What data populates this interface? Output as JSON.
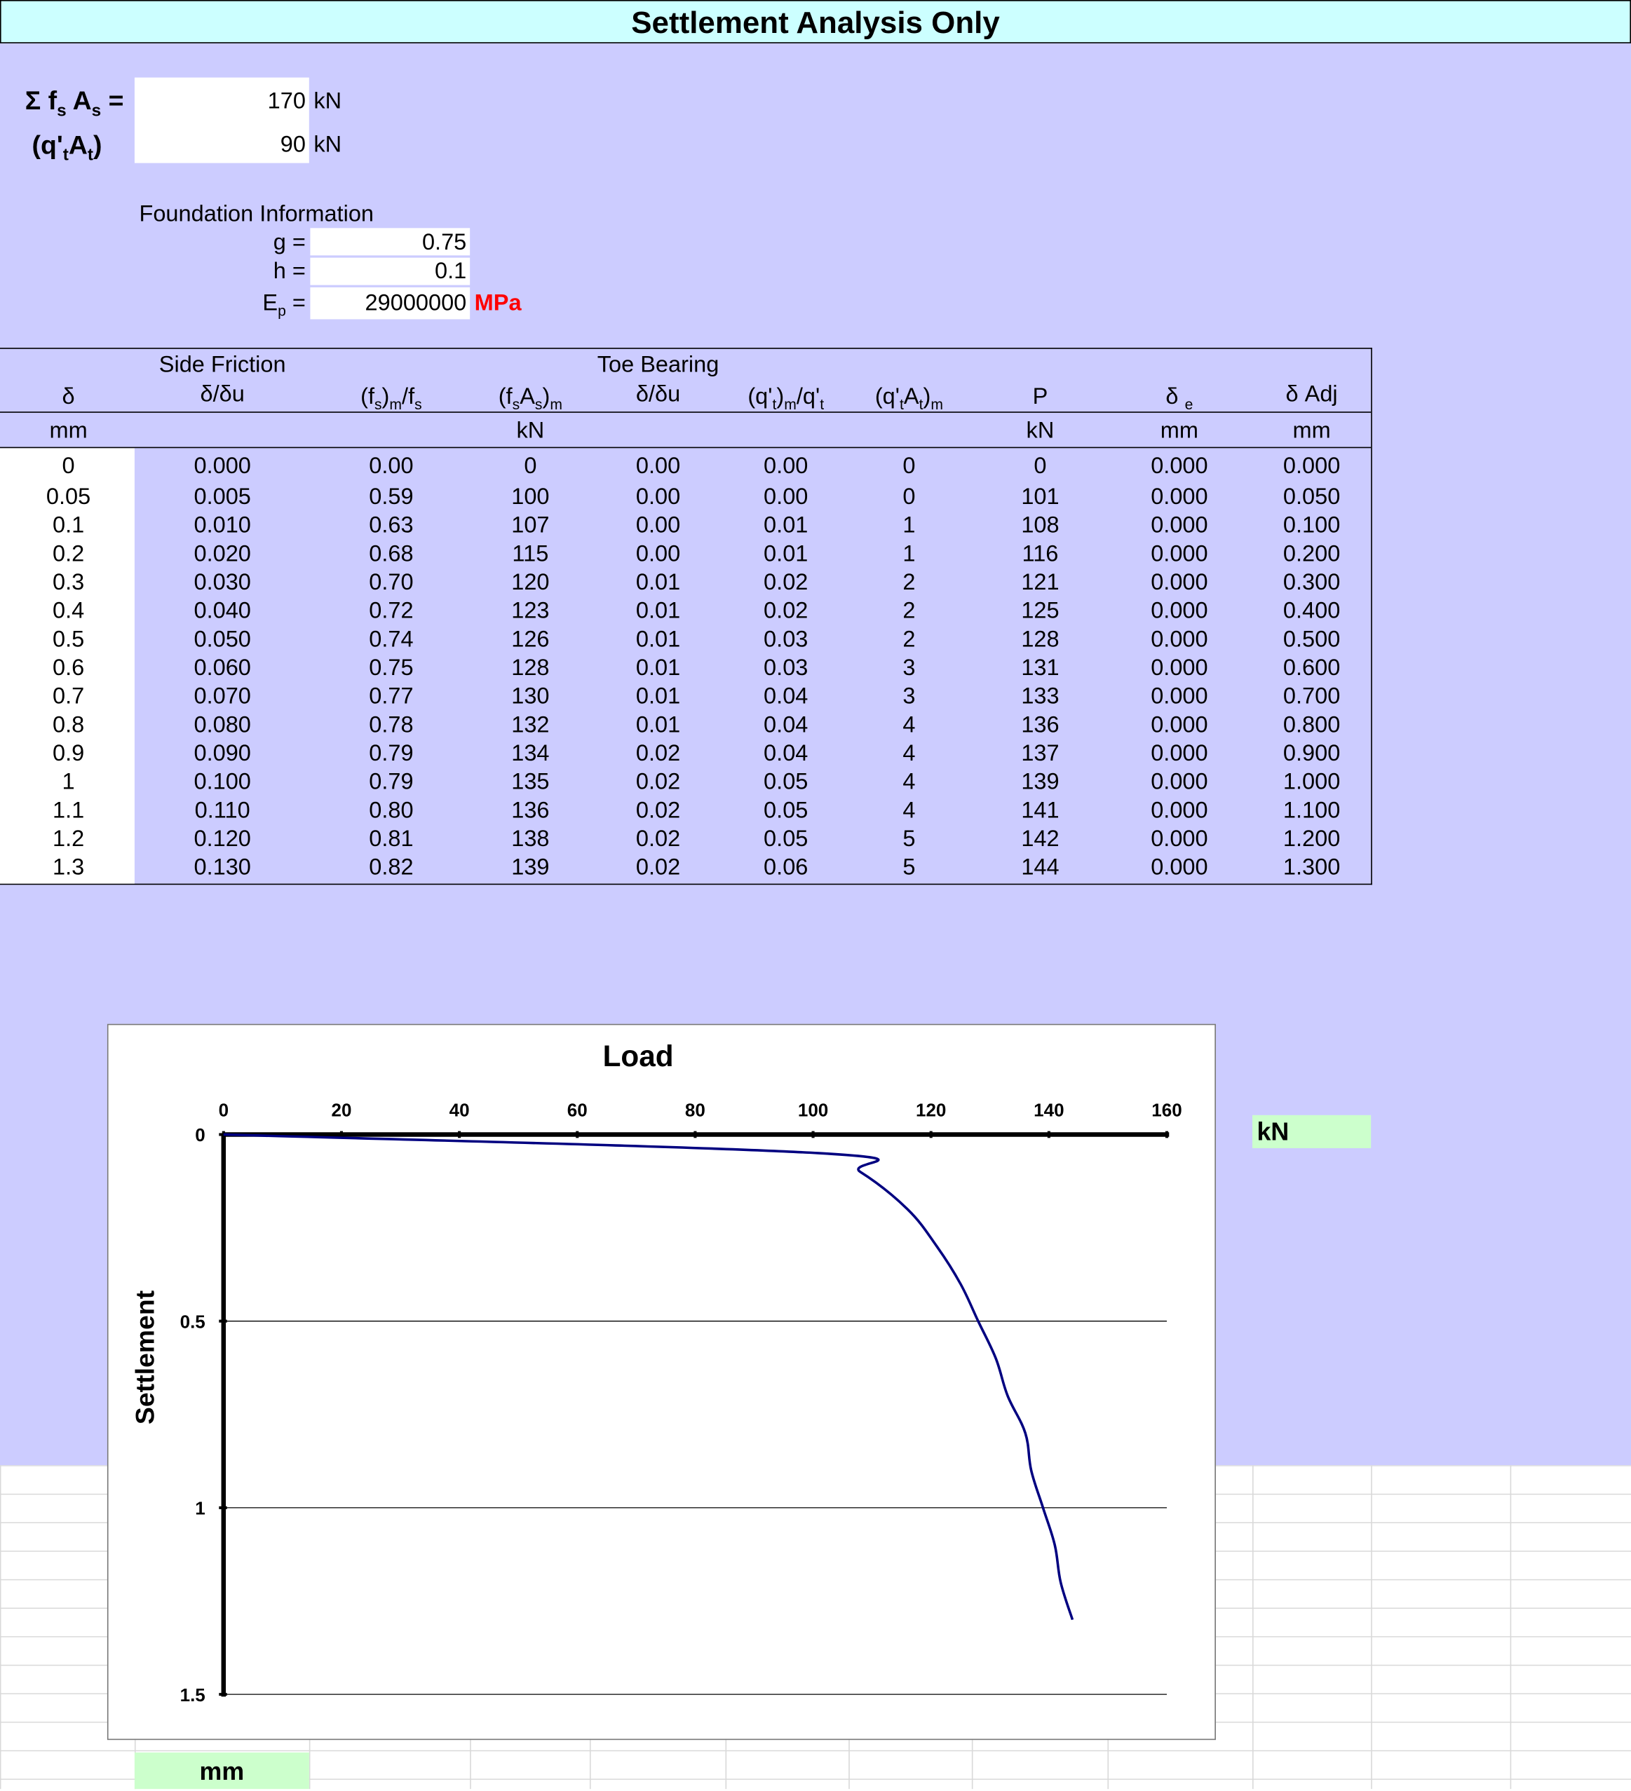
{
  "title": "Settlement Analysis Only",
  "inputs": {
    "side_sum_label_main": "Σ f",
    "side_sum_label_sub1": "s",
    "side_sum_label_mid": " A",
    "side_sum_label_sub2": "s",
    "side_sum_label_end": " =",
    "side_sum_value": "170",
    "side_sum_unit": "kN",
    "toe_label_start": "(q'",
    "toe_label_sub1": "t",
    "toe_label_mid": "A",
    "toe_label_sub2": "t",
    "toe_label_end": ")",
    "toe_value": "90",
    "toe_unit": "kN"
  },
  "foundation": {
    "heading": "Foundation Information",
    "g_label": "g =",
    "g_value": "0.75",
    "h_label": "h =",
    "h_value": "0.1",
    "ep_label_main": "E",
    "ep_label_sub": "p",
    "ep_label_end": " =",
    "ep_value": "29000000",
    "ep_unit": "MPa"
  },
  "table": {
    "group_side": "Side Friction",
    "group_toe": "Toe Bearing",
    "headers": [
      "δ",
      "δ/δu",
      "(fs)m/fs",
      "(fsAs)m",
      "δ/δu",
      "(q't)m/q't",
      "(q'tAt)m",
      "P",
      "δ e",
      "δ Adj"
    ],
    "units": [
      "mm",
      "",
      "",
      "kN",
      "",
      "",
      "",
      "kN",
      "mm",
      "mm"
    ],
    "rows": [
      [
        "0",
        "0.000",
        "0.00",
        "0",
        "0.00",
        "0.00",
        "0",
        "0",
        "0.000",
        "0.000"
      ],
      [
        "0.05",
        "0.005",
        "0.59",
        "100",
        "0.00",
        "0.00",
        "0",
        "101",
        "0.000",
        "0.050"
      ],
      [
        "0.1",
        "0.010",
        "0.63",
        "107",
        "0.00",
        "0.01",
        "1",
        "108",
        "0.000",
        "0.100"
      ],
      [
        "0.2",
        "0.020",
        "0.68",
        "115",
        "0.00",
        "0.01",
        "1",
        "116",
        "0.000",
        "0.200"
      ],
      [
        "0.3",
        "0.030",
        "0.70",
        "120",
        "0.01",
        "0.02",
        "2",
        "121",
        "0.000",
        "0.300"
      ],
      [
        "0.4",
        "0.040",
        "0.72",
        "123",
        "0.01",
        "0.02",
        "2",
        "125",
        "0.000",
        "0.400"
      ],
      [
        "0.5",
        "0.050",
        "0.74",
        "126",
        "0.01",
        "0.03",
        "2",
        "128",
        "0.000",
        "0.500"
      ],
      [
        "0.6",
        "0.060",
        "0.75",
        "128",
        "0.01",
        "0.03",
        "3",
        "131",
        "0.000",
        "0.600"
      ],
      [
        "0.7",
        "0.070",
        "0.77",
        "130",
        "0.01",
        "0.04",
        "3",
        "133",
        "0.000",
        "0.700"
      ],
      [
        "0.8",
        "0.080",
        "0.78",
        "132",
        "0.01",
        "0.04",
        "4",
        "136",
        "0.000",
        "0.800"
      ],
      [
        "0.9",
        "0.090",
        "0.79",
        "134",
        "0.02",
        "0.04",
        "4",
        "137",
        "0.000",
        "0.900"
      ],
      [
        "1",
        "0.100",
        "0.79",
        "135",
        "0.02",
        "0.05",
        "4",
        "139",
        "0.000",
        "1.000"
      ],
      [
        "1.1",
        "0.110",
        "0.80",
        "136",
        "0.02",
        "0.05",
        "4",
        "141",
        "0.000",
        "1.100"
      ],
      [
        "1.2",
        "0.120",
        "0.81",
        "138",
        "0.02",
        "0.05",
        "5",
        "142",
        "0.000",
        "1.200"
      ],
      [
        "1.3",
        "0.130",
        "0.82",
        "139",
        "0.02",
        "0.06",
        "5",
        "144",
        "0.000",
        "1.300"
      ]
    ]
  },
  "chart_data": {
    "type": "line",
    "title": "Load",
    "xlabel": "",
    "ylabel": "Settlement",
    "x_unit_label": "kN",
    "y_unit_label": "mm",
    "xlim": [
      0,
      160
    ],
    "ylim": [
      0,
      1.5
    ],
    "y_reversed": true,
    "x_axis_position": "top",
    "x_ticks": [
      "0",
      "20",
      "40",
      "60",
      "80",
      "100",
      "120",
      "140",
      "160"
    ],
    "y_ticks": [
      "0",
      "0.5",
      "1",
      "1.5"
    ],
    "grid": "horizontal",
    "series_color": "#000080",
    "series": [
      {
        "x": [
          0,
          101,
          108,
          116,
          121,
          125,
          128,
          131,
          133,
          136,
          137,
          139,
          141,
          142,
          144
        ],
        "y": [
          0,
          0.05,
          0.1,
          0.2,
          0.3,
          0.4,
          0.5,
          0.6,
          0.7,
          0.8,
          0.9,
          1.0,
          1.1,
          1.2,
          1.3
        ]
      }
    ]
  }
}
